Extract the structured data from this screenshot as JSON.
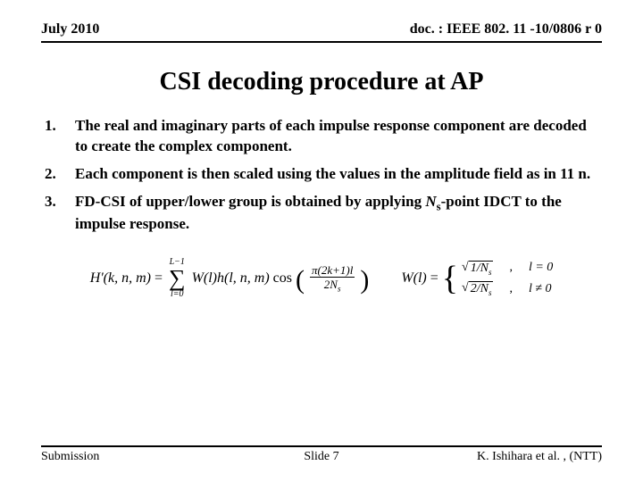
{
  "header": {
    "left": "July 2010",
    "right": "doc. : IEEE 802. 11 -10/0806 r 0"
  },
  "title": "CSI decoding procedure at AP",
  "items": [
    {
      "num": "1.",
      "text": "The real and imaginary parts of each impulse response component are decoded to create the complex component."
    },
    {
      "num": "2.",
      "text": "Each component is then scaled using the values in the amplitude field as in 11 n."
    },
    {
      "num": "3.",
      "text_pre": "FD-CSI of upper/lower group is obtained by applying ",
      "text_var": "N",
      "text_sub": "s",
      "text_post": "-point IDCT to the impulse response."
    }
  ],
  "formula": {
    "lhs": "H'(k, n, m)",
    "eq": "=",
    "sum_top": "L−1",
    "sum_bot": "l=0",
    "w": "W(l)h(l, n, m)",
    "cos": "cos",
    "frac_num": "π(2k+1)l",
    "frac_den_a": "2N",
    "frac_den_sub": "s",
    "w2_lhs": "W(l)",
    "case1_val_a": "1/N",
    "case1_val_sub": "s",
    "case1_cond": "l = 0",
    "case2_val_a": "2/N",
    "case2_val_sub": "s",
    "case2_cond": "l ≠ 0"
  },
  "footer": {
    "left": "Submission",
    "center": "Slide 7",
    "right": "K. Ishihara et al. , (NTT)"
  }
}
